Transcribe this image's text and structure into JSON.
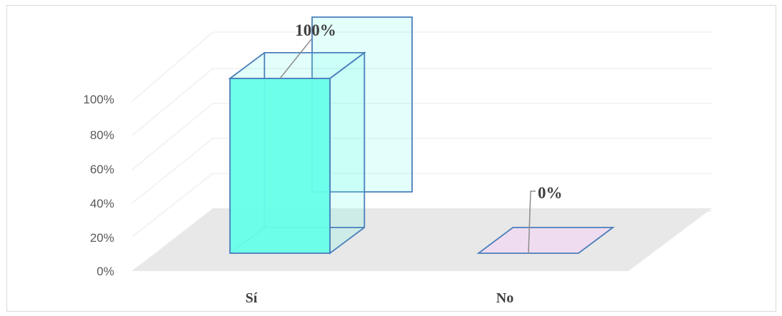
{
  "chart_data": {
    "type": "bar",
    "categories": [
      "Sí",
      "No"
    ],
    "values": [
      100,
      0
    ],
    "data_labels": [
      "100%",
      "0%"
    ],
    "y_ticks": [
      "0%",
      "20%",
      "40%",
      "60%",
      "80%",
      "100%"
    ],
    "ylim": [
      0,
      100
    ],
    "grid": true,
    "colors": {
      "si_bar": "#66ffe8",
      "no_bar": "#f0dcf0",
      "edge": "#4a7ebb",
      "floor": "#e8e8e8",
      "gridline": "#f0f0f0"
    }
  }
}
